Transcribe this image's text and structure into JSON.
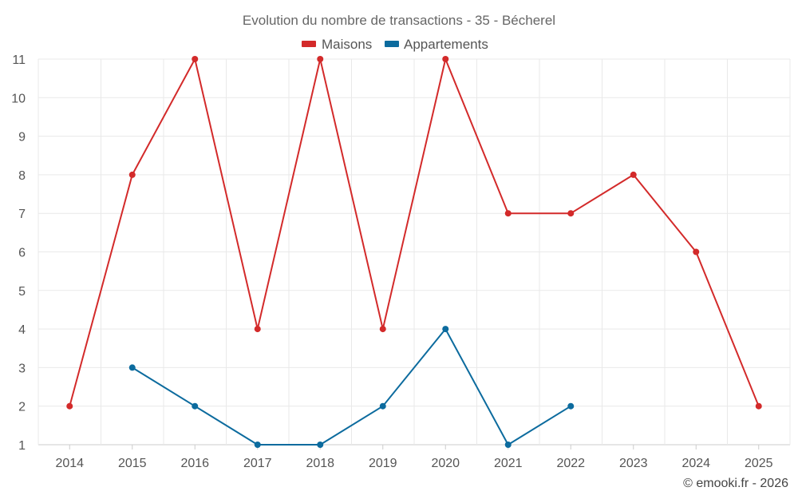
{
  "chart_data": {
    "type": "line",
    "title": "Evolution du nombre de transactions - 35 - Bécherel",
    "xlabel": "",
    "ylabel": "",
    "categories": [
      "2014",
      "2015",
      "2016",
      "2017",
      "2018",
      "2019",
      "2020",
      "2021",
      "2022",
      "2023",
      "2024",
      "2025"
    ],
    "ylim": [
      1,
      11
    ],
    "yticks": [
      1,
      2,
      3,
      4,
      5,
      6,
      7,
      8,
      9,
      10,
      11
    ],
    "grid": true,
    "legend_position": "top-center",
    "series": [
      {
        "name": "Maisons",
        "color": "#d32a2a",
        "values": [
          2,
          8,
          11,
          4,
          11,
          4,
          11,
          7,
          7,
          8,
          6,
          2
        ]
      },
      {
        "name": "Appartements",
        "color": "#0c6b9e",
        "values": [
          null,
          3,
          2,
          1,
          1,
          2,
          4,
          1,
          2,
          null,
          null,
          null
        ]
      }
    ]
  },
  "credit": "© emooki.fr - 2026"
}
